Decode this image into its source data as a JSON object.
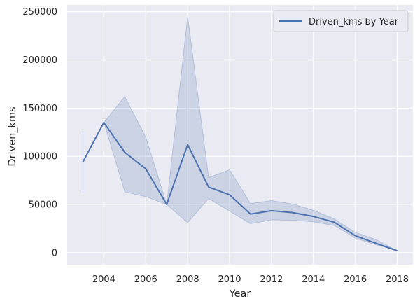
{
  "chart_data": {
    "type": "line",
    "title": "",
    "xlabel": "Year",
    "ylabel": "Driven_kms",
    "xlim": [
      2002.25,
      2018.75
    ],
    "ylim": [
      -12500,
      257000
    ],
    "grid": true,
    "legend_position": "top-right",
    "colors": {
      "background": "#eaeaf2",
      "grid": "#ffffff",
      "line": "#4c72b0",
      "band": "#4c72b0"
    },
    "x_ticks": [
      2004,
      2006,
      2008,
      2010,
      2012,
      2014,
      2016,
      2018
    ],
    "x_tick_labels": [
      "2004",
      "2006",
      "2008",
      "2010",
      "2012",
      "2014",
      "2016",
      "2018"
    ],
    "y_ticks": [
      0,
      50000,
      100000,
      150000,
      200000,
      250000
    ],
    "y_tick_labels": [
      "0",
      "50000",
      "100000",
      "150000",
      "200000",
      "250000"
    ],
    "series": [
      {
        "name": "Driven_kms by Year",
        "x": [
          2003,
          2004,
          2005,
          2006,
          2007,
          2008,
          2009,
          2010,
          2011,
          2012,
          2013,
          2014,
          2015,
          2016,
          2017,
          2018
        ],
        "y": [
          94000,
          135000,
          104000,
          87000,
          50000,
          112000,
          68000,
          60000,
          40000,
          43500,
          41500,
          37500,
          31500,
          17500,
          9500,
          2000
        ],
        "ci_lower": [
          62000,
          135000,
          63000,
          58000,
          50000,
          31000,
          56000,
          43000,
          30000,
          34000,
          33500,
          32000,
          28000,
          15000,
          8000,
          2000
        ],
        "ci_upper": [
          126000,
          135000,
          162000,
          120000,
          50000,
          245000,
          78000,
          86000,
          51000,
          54000,
          50500,
          44000,
          35000,
          21000,
          13500,
          2000
        ]
      }
    ]
  }
}
